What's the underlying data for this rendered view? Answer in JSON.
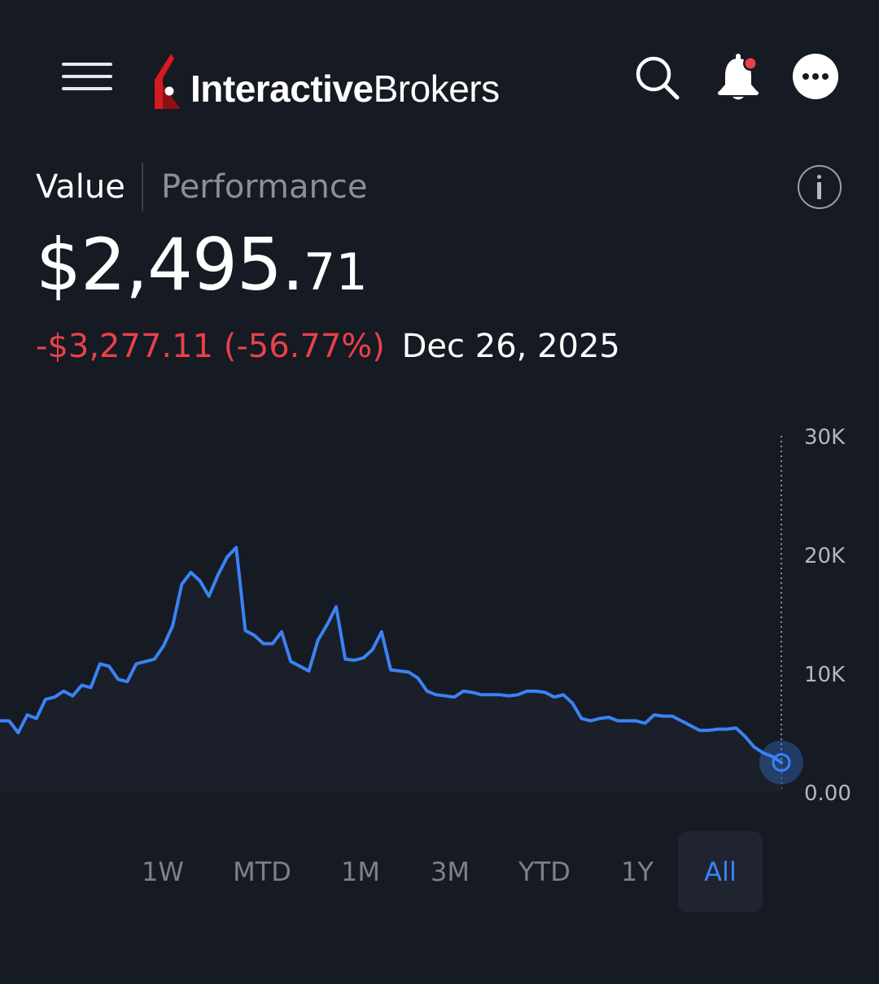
{
  "header": {
    "menu_icon": "hamburger-menu-icon",
    "logo": {
      "text_bold": "Interactive",
      "text_light": "Brokers",
      "mark_color": "#d71920"
    },
    "search_icon": "search-icon",
    "bell_icon": "notification-bell-icon",
    "more_icon": "more-options-icon"
  },
  "tabs": [
    {
      "label": "Value",
      "active": true
    },
    {
      "label": "Performance",
      "active": false
    }
  ],
  "info_icon": "info-icon",
  "balance": {
    "main": "$2,495.",
    "cents": "71"
  },
  "change": {
    "amount": "-$3,277.11",
    "percent": "(-56.77%)",
    "date": "Dec 26, 2025"
  },
  "colors": {
    "background": "#161a22",
    "line": "#3b82f6",
    "negative": "#e8414b",
    "muted": "#7d818a"
  },
  "chart_data": {
    "type": "line",
    "title": "",
    "xlabel": "",
    "ylabel": "",
    "ylim": [
      0,
      30000
    ],
    "yticks": [
      "30K",
      "20K",
      "10K",
      "0.00"
    ],
    "ytick_values": [
      30000,
      20000,
      10000,
      0
    ],
    "grid": false,
    "series": [
      {
        "values": [
          6000,
          6000,
          5000,
          6500,
          6200,
          7800,
          8000,
          8500,
          8100,
          9000,
          8800,
          10800,
          10600,
          9500,
          9300,
          10800,
          11000,
          11200,
          12300,
          14000,
          17500,
          18500,
          17800,
          16500,
          18300,
          19800,
          20600,
          13600,
          13200,
          12500,
          12500,
          13500,
          11000,
          10600,
          10200,
          12800,
          14100,
          15600,
          11200,
          11100,
          11300,
          12000,
          13500,
          10300,
          10200,
          10100,
          9600,
          8500,
          8200,
          8100,
          8000,
          8500,
          8400,
          8200,
          8200,
          8200,
          8100,
          8200,
          8500,
          8500,
          8400,
          8000,
          8200,
          7500,
          6200,
          6000,
          6200,
          6300,
          6000,
          6000,
          6000,
          5800,
          6500,
          6400,
          6400,
          6000,
          5600,
          5200,
          5200,
          5300,
          5300,
          5400,
          4700,
          3800,
          3300,
          3000,
          2495.71
        ]
      }
    ],
    "current_point": {
      "date": "Dec 26, 2025",
      "value": 2495.71
    }
  },
  "ranges": [
    {
      "label": "1W",
      "active": false
    },
    {
      "label": "MTD",
      "active": false
    },
    {
      "label": "1M",
      "active": false
    },
    {
      "label": "3M",
      "active": false
    },
    {
      "label": "YTD",
      "active": false
    },
    {
      "label": "1Y",
      "active": false
    },
    {
      "label": "All",
      "active": true
    }
  ]
}
